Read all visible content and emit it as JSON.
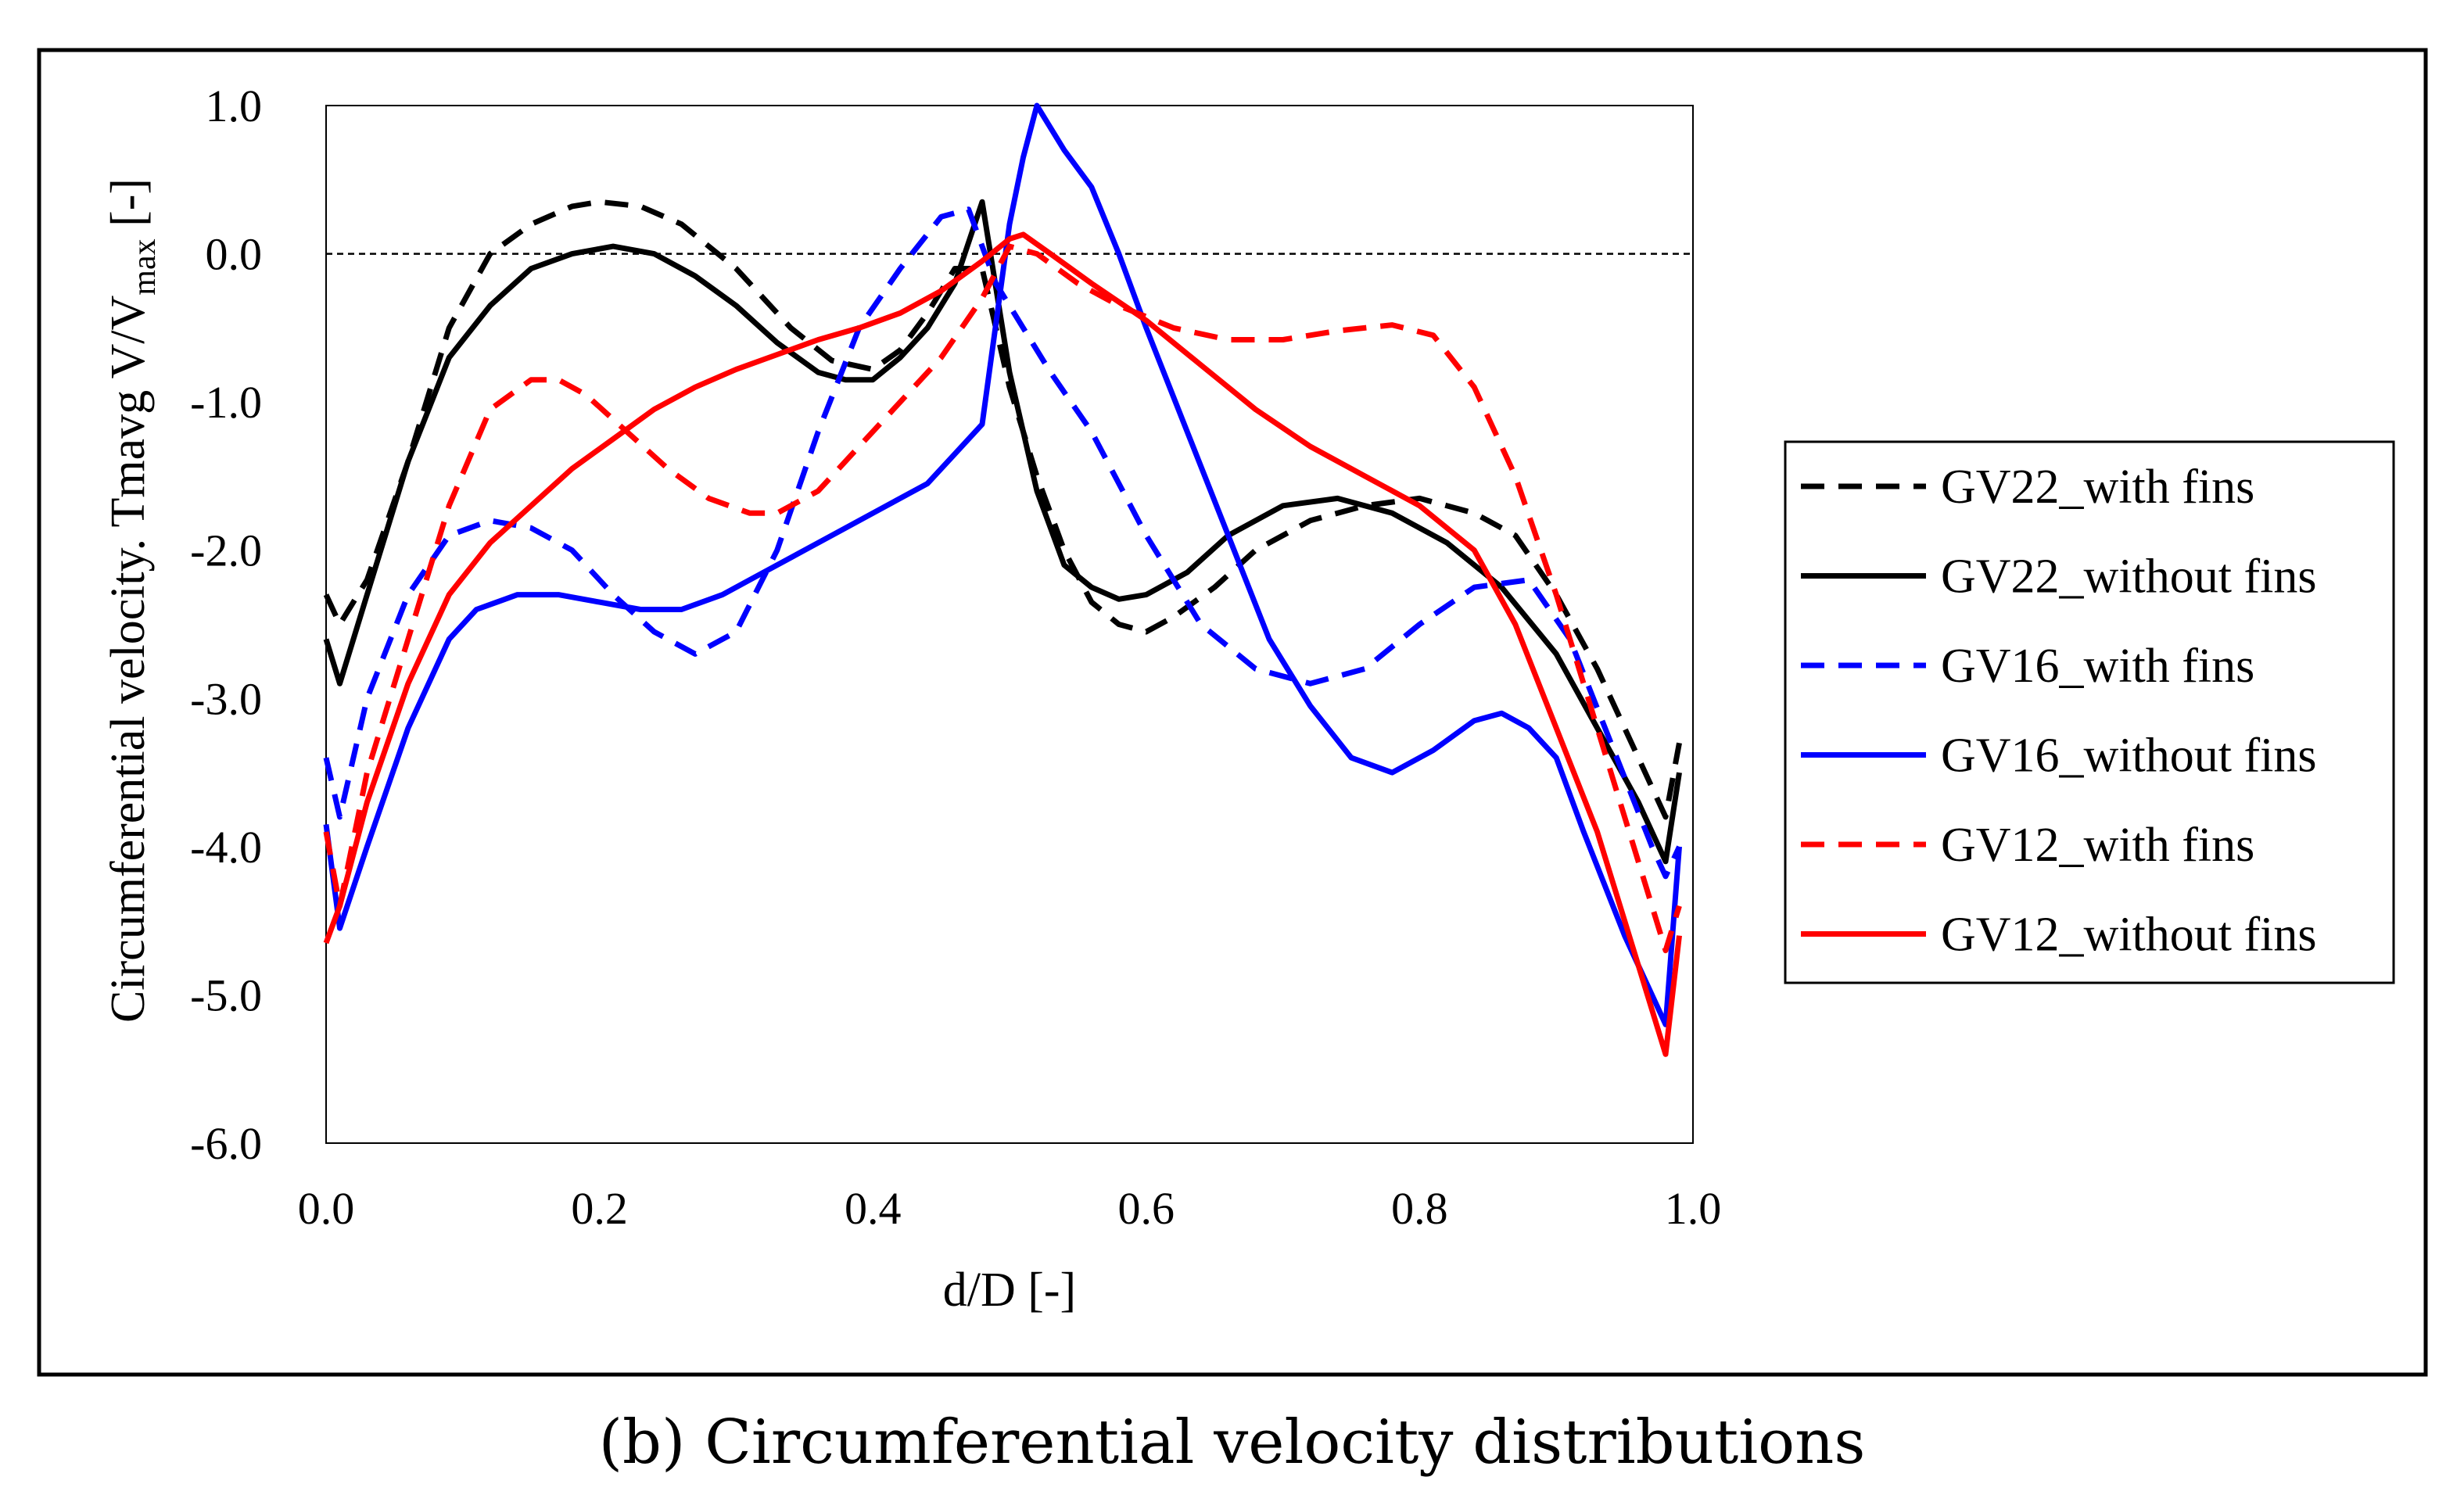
{
  "caption": "(b) Circumferential velocity distributions",
  "chart_data": {
    "type": "line",
    "title": "",
    "xlabel": "d/D [-]",
    "ylabel": {
      "prefix": "Circumferential velocity. Tmavg  V/V",
      "subscript": "max",
      "suffix": " [-]"
    },
    "xlim": [
      0.0,
      1.0
    ],
    "ylim": [
      -6.0,
      1.0
    ],
    "xticks": [
      "0.0",
      "0.2",
      "0.4",
      "0.6",
      "0.8",
      "1.0"
    ],
    "yticks": [
      "1.0",
      "0.0",
      "-1.0",
      "-2.0",
      "-3.0",
      "-4.0",
      "-5.0",
      "-6.0"
    ],
    "reference_line": 0.0,
    "legend_position": "right",
    "series": [
      {
        "name": "GV22_with fins",
        "color": "#000000",
        "dash": true,
        "x": [
          0.0,
          0.01,
          0.03,
          0.06,
          0.09,
          0.12,
          0.15,
          0.18,
          0.2,
          0.23,
          0.26,
          0.3,
          0.34,
          0.37,
          0.4,
          0.42,
          0.44,
          0.46,
          0.48,
          0.5,
          0.52,
          0.54,
          0.56,
          0.58,
          0.6,
          0.62,
          0.65,
          0.68,
          0.72,
          0.76,
          0.8,
          0.84,
          0.87,
          0.9,
          0.93,
          0.96,
          0.98,
          0.99
        ],
        "y": [
          -2.3,
          -2.5,
          -2.2,
          -1.4,
          -0.5,
          0.0,
          0.2,
          0.32,
          0.35,
          0.32,
          0.2,
          -0.1,
          -0.5,
          -0.72,
          -0.78,
          -0.65,
          -0.4,
          -0.1,
          -0.1,
          -0.9,
          -1.5,
          -2.0,
          -2.35,
          -2.5,
          -2.55,
          -2.45,
          -2.25,
          -2.0,
          -1.8,
          -1.7,
          -1.65,
          -1.75,
          -1.9,
          -2.3,
          -2.8,
          -3.4,
          -3.8,
          -3.3
        ]
      },
      {
        "name": "GV22_without fins",
        "color": "#000000",
        "dash": false,
        "x": [
          0.0,
          0.01,
          0.03,
          0.06,
          0.09,
          0.12,
          0.15,
          0.18,
          0.21,
          0.24,
          0.27,
          0.3,
          0.33,
          0.36,
          0.38,
          0.4,
          0.42,
          0.44,
          0.46,
          0.48,
          0.5,
          0.52,
          0.54,
          0.56,
          0.58,
          0.6,
          0.63,
          0.66,
          0.7,
          0.74,
          0.78,
          0.82,
          0.86,
          0.9,
          0.93,
          0.96,
          0.98,
          0.99
        ],
        "y": [
          -2.6,
          -2.9,
          -2.3,
          -1.4,
          -0.7,
          -0.35,
          -0.1,
          0.0,
          0.05,
          0.0,
          -0.15,
          -0.35,
          -0.6,
          -0.8,
          -0.85,
          -0.85,
          -0.7,
          -0.5,
          -0.2,
          0.35,
          -0.8,
          -1.6,
          -2.1,
          -2.25,
          -2.33,
          -2.3,
          -2.15,
          -1.9,
          -1.7,
          -1.65,
          -1.75,
          -1.95,
          -2.25,
          -2.7,
          -3.2,
          -3.7,
          -4.1,
          -3.5
        ]
      },
      {
        "name": "GV16_with fins",
        "color": "#0000ff",
        "dash": true,
        "x": [
          0.0,
          0.01,
          0.03,
          0.06,
          0.09,
          0.12,
          0.15,
          0.18,
          0.21,
          0.24,
          0.27,
          0.3,
          0.33,
          0.36,
          0.39,
          0.42,
          0.45,
          0.47,
          0.49,
          0.51,
          0.53,
          0.56,
          0.6,
          0.64,
          0.68,
          0.72,
          0.76,
          0.8,
          0.84,
          0.88,
          0.91,
          0.94,
          0.97,
          0.98,
          0.99
        ],
        "y": [
          -3.4,
          -3.8,
          -3.0,
          -2.3,
          -1.9,
          -1.8,
          -1.85,
          -2.0,
          -2.3,
          -2.55,
          -2.7,
          -2.55,
          -2.0,
          -1.2,
          -0.5,
          -0.1,
          0.25,
          0.3,
          -0.2,
          -0.5,
          -0.8,
          -1.2,
          -1.9,
          -2.5,
          -2.8,
          -2.9,
          -2.8,
          -2.5,
          -2.25,
          -2.2,
          -2.6,
          -3.3,
          -4.0,
          -4.2,
          -4.0
        ]
      },
      {
        "name": "GV16_without fins",
        "color": "#0000ff",
        "dash": false,
        "x": [
          0.0,
          0.01,
          0.03,
          0.06,
          0.09,
          0.11,
          0.14,
          0.17,
          0.2,
          0.23,
          0.26,
          0.29,
          0.32,
          0.35,
          0.38,
          0.41,
          0.44,
          0.46,
          0.48,
          0.5,
          0.51,
          0.52,
          0.54,
          0.56,
          0.58,
          0.6,
          0.63,
          0.66,
          0.69,
          0.72,
          0.75,
          0.78,
          0.81,
          0.84,
          0.86,
          0.88,
          0.9,
          0.92,
          0.95,
          0.98,
          0.99
        ],
        "y": [
          -3.85,
          -4.55,
          -4.0,
          -3.2,
          -2.6,
          -2.4,
          -2.3,
          -2.3,
          -2.35,
          -2.4,
          -2.4,
          -2.3,
          -2.15,
          -2.0,
          -1.85,
          -1.7,
          -1.55,
          -1.35,
          -1.15,
          0.2,
          0.65,
          1.0,
          0.7,
          0.45,
          0.0,
          -0.5,
          -1.2,
          -1.9,
          -2.6,
          -3.05,
          -3.4,
          -3.5,
          -3.35,
          -3.15,
          -3.1,
          -3.2,
          -3.4,
          -3.9,
          -4.6,
          -5.2,
          -4.0
        ]
      },
      {
        "name": "GV12_with fins",
        "color": "#ff0000",
        "dash": true,
        "x": [
          0.0,
          0.01,
          0.03,
          0.06,
          0.09,
          0.12,
          0.15,
          0.17,
          0.19,
          0.22,
          0.25,
          0.28,
          0.31,
          0.33,
          0.36,
          0.39,
          0.42,
          0.45,
          0.48,
          0.5,
          0.52,
          0.55,
          0.58,
          0.62,
          0.66,
          0.7,
          0.74,
          0.78,
          0.81,
          0.84,
          0.87,
          0.9,
          0.93,
          0.96,
          0.98,
          0.99
        ],
        "y": [
          -3.9,
          -4.4,
          -3.5,
          -2.6,
          -1.7,
          -1.05,
          -0.85,
          -0.85,
          -0.95,
          -1.2,
          -1.45,
          -1.65,
          -1.75,
          -1.75,
          -1.6,
          -1.3,
          -1.0,
          -0.7,
          -0.3,
          0.05,
          0.0,
          -0.2,
          -0.35,
          -0.5,
          -0.58,
          -0.58,
          -0.52,
          -0.48,
          -0.55,
          -0.9,
          -1.5,
          -2.3,
          -3.2,
          -4.1,
          -4.7,
          -4.4
        ]
      },
      {
        "name": "GV12_without fins",
        "color": "#ff0000",
        "dash": false,
        "x": [
          0.0,
          0.01,
          0.03,
          0.06,
          0.09,
          0.12,
          0.15,
          0.18,
          0.21,
          0.24,
          0.27,
          0.3,
          0.33,
          0.36,
          0.39,
          0.42,
          0.45,
          0.48,
          0.5,
          0.51,
          0.53,
          0.56,
          0.6,
          0.64,
          0.68,
          0.72,
          0.76,
          0.8,
          0.84,
          0.87,
          0.9,
          0.93,
          0.96,
          0.98,
          0.99
        ],
        "y": [
          -4.65,
          -4.4,
          -3.7,
          -2.9,
          -2.3,
          -1.95,
          -1.7,
          -1.45,
          -1.25,
          -1.05,
          -0.9,
          -0.78,
          -0.68,
          -0.58,
          -0.5,
          -0.4,
          -0.25,
          -0.05,
          0.1,
          0.13,
          0.0,
          -0.2,
          -0.45,
          -0.75,
          -1.05,
          -1.3,
          -1.5,
          -1.7,
          -2.0,
          -2.5,
          -3.2,
          -3.9,
          -4.8,
          -5.4,
          -4.6
        ]
      }
    ]
  }
}
